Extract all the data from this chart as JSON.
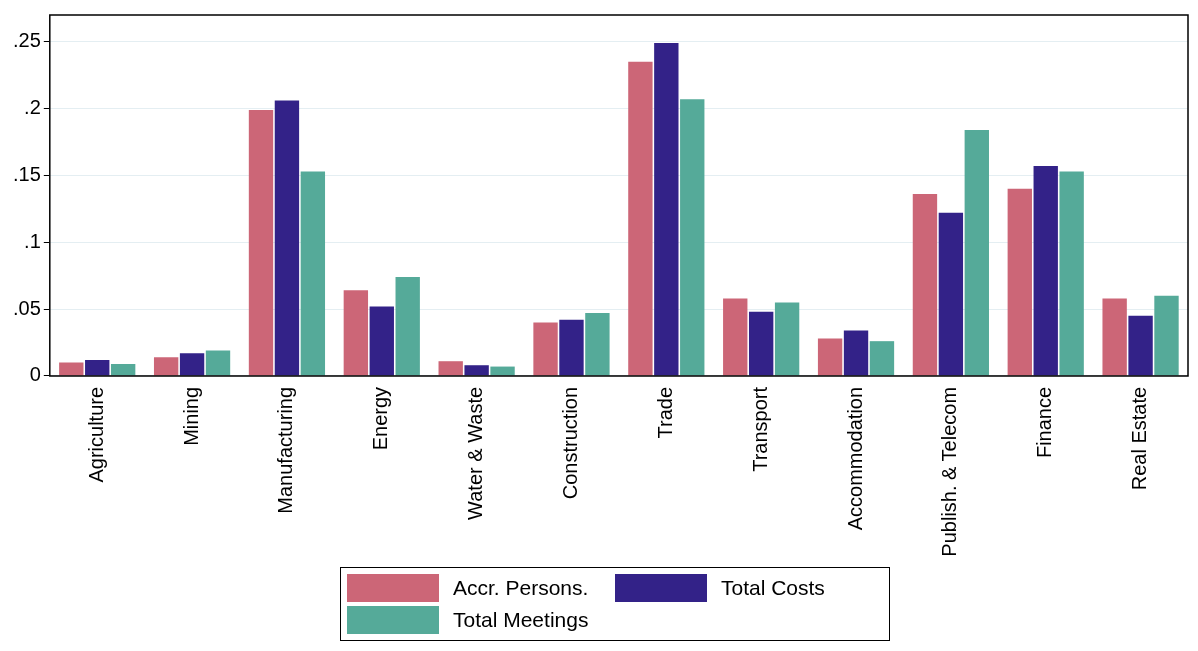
{
  "chart_data": {
    "type": "bar",
    "categories": [
      "Agriculture",
      "Mining",
      "Manufacturing",
      "Energy",
      "Water & Waste",
      "Construction",
      "Trade",
      "Transport",
      "Accommodation",
      "Publish. & Telecom",
      "Finance",
      "Real Estate"
    ],
    "series": [
      {
        "name": "Accr. Persons.",
        "color": "#cc6677",
        "values": [
          0.01,
          0.014,
          0.199,
          0.064,
          0.011,
          0.04,
          0.235,
          0.058,
          0.028,
          0.136,
          0.14,
          0.058
        ]
      },
      {
        "name": "Total Costs",
        "color": "#332288",
        "values": [
          0.012,
          0.017,
          0.206,
          0.052,
          0.008,
          0.042,
          0.249,
          0.048,
          0.034,
          0.122,
          0.157,
          0.045
        ]
      },
      {
        "name": "Total Meetings",
        "color": "#55aa99",
        "values": [
          0.009,
          0.019,
          0.153,
          0.074,
          0.007,
          0.047,
          0.207,
          0.055,
          0.026,
          0.184,
          0.153,
          0.06
        ]
      }
    ],
    "ylim": [
      0,
      0.27
    ],
    "yticks": [
      0,
      {
        "value": 0.05,
        "label": ".05"
      },
      {
        "value": 0.1,
        "label": ".1"
      },
      {
        "value": 0.15,
        "label": ".15"
      },
      {
        "value": 0.2,
        "label": ".2"
      },
      {
        "value": 0.25,
        "label": ".25"
      }
    ],
    "grid": "y",
    "legend": "bottom"
  }
}
